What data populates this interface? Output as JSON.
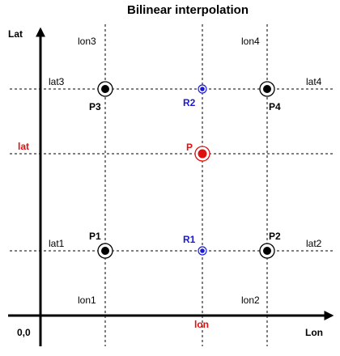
{
  "title": "Bilinear interpolation",
  "axes": {
    "y_label": "Lat",
    "x_label": "Lon",
    "origin_label": "0,0"
  },
  "grid_labels": {
    "lon1": "lon1",
    "lon2": "lon2",
    "lon3": "lon3",
    "lon4": "lon4",
    "lat1": "lat1",
    "lat2": "lat2",
    "lat3": "lat3",
    "lat4": "lat4",
    "lat": "lat",
    "lon": "lon"
  },
  "points": {
    "p1": "P1",
    "p2": "P2",
    "p3": "P3",
    "p4": "P4",
    "r1": "R1",
    "r2": "R2",
    "p": "P"
  },
  "colors": {
    "grid_point": "#000000",
    "r_point": "#1a1ad6",
    "target_point": "#e01010",
    "r_label": "#1a1acc",
    "target_label": "#e01010"
  }
}
